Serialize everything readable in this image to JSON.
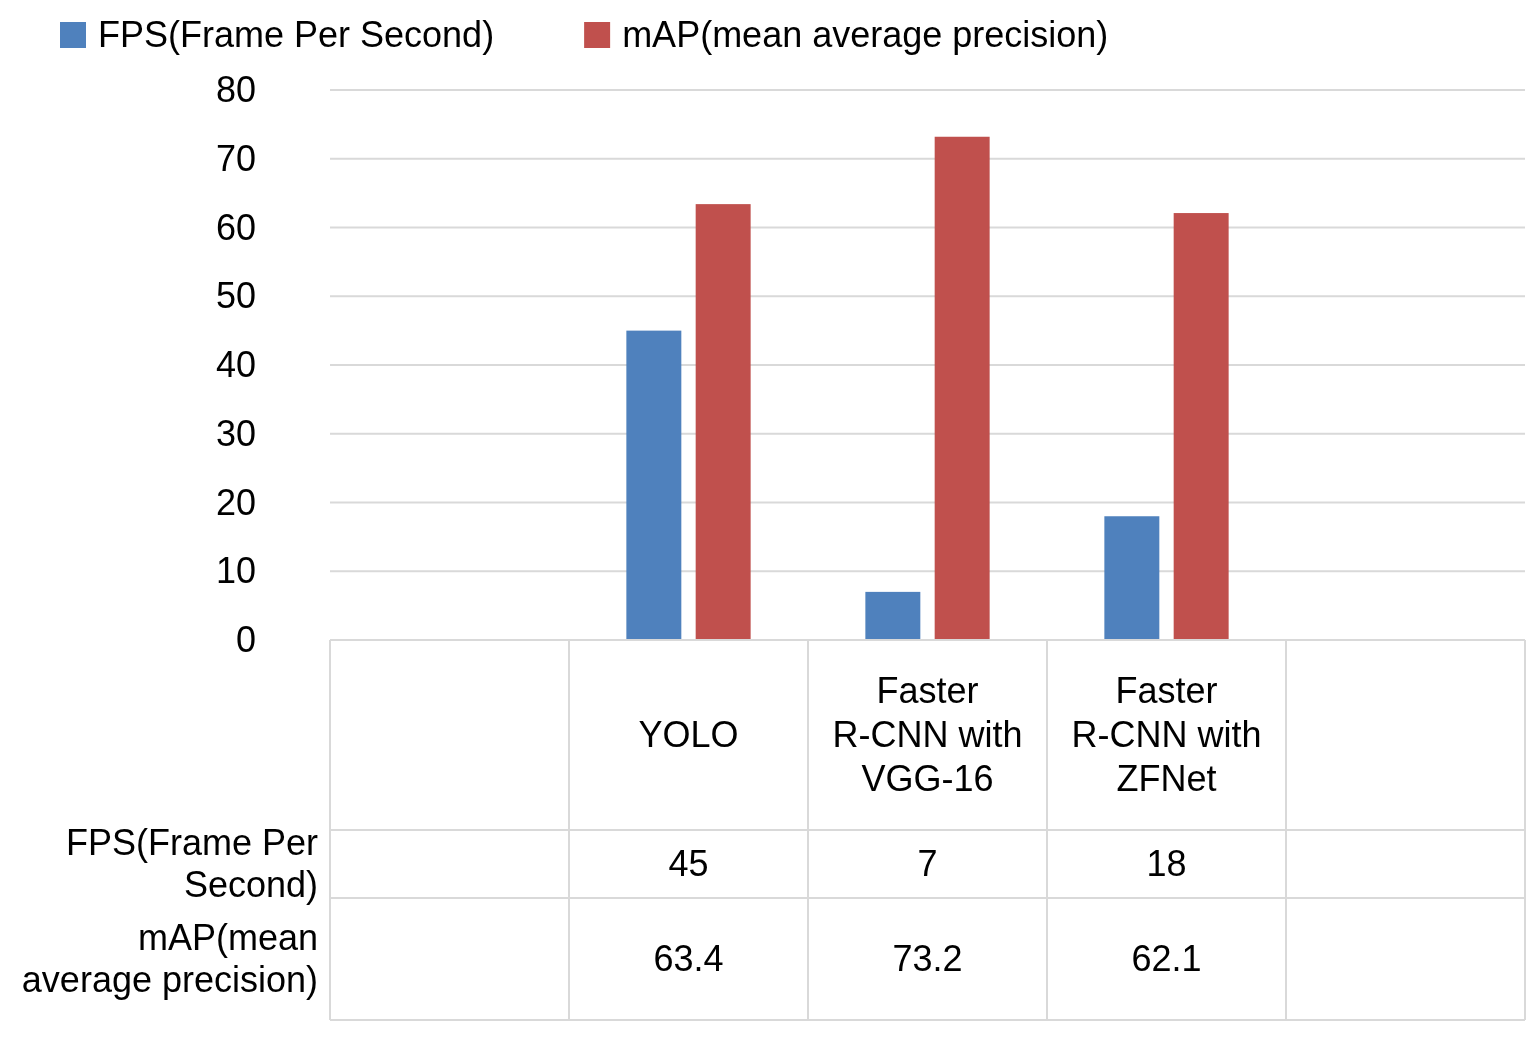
{
  "chart_data": {
    "type": "bar",
    "categories": [
      null,
      "YOLO",
      "Faster R-CNN with VGG-16",
      "Faster R-CNN with ZFNet",
      null
    ],
    "series": [
      {
        "name": "FPS(Frame Per Second)",
        "color": "#4f81bd",
        "values": [
          null,
          45,
          7,
          18,
          null
        ]
      },
      {
        "name": "mAP(mean average precision)",
        "color": "#c0504d",
        "values": [
          null,
          63.4,
          73.2,
          62.1,
          null
        ]
      }
    ],
    "ylim": [
      0,
      80
    ],
    "yticks": [
      0,
      10,
      20,
      30,
      40,
      50,
      60,
      70,
      80
    ],
    "grid": "y",
    "legend": "top",
    "data_labels": true
  }
}
